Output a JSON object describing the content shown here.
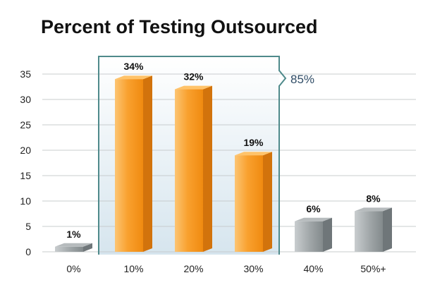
{
  "chart_data": {
    "type": "bar",
    "title": "Percent of Testing Outsourced",
    "xlabel": "",
    "ylabel": "",
    "categories": [
      "0%",
      "10%",
      "20%",
      "30%",
      "40%",
      "50%+"
    ],
    "values": [
      1,
      34,
      32,
      19,
      6,
      8
    ],
    "data_labels": [
      "1%",
      "34%",
      "32%",
      "19%",
      "6%",
      "8%"
    ],
    "yticks": [
      "0",
      "5",
      "10",
      "15",
      "20",
      "25",
      "30",
      "35"
    ],
    "ylim": [
      0,
      37
    ],
    "grid": true,
    "highlight": {
      "categories": [
        "10%",
        "20%",
        "30%"
      ],
      "label": "85%"
    },
    "colors": {
      "highlight_bar": "#f7941d",
      "other_bar": "#8c9396",
      "bracket": "#4f8a8b",
      "grid": "#c8ccce"
    }
  }
}
